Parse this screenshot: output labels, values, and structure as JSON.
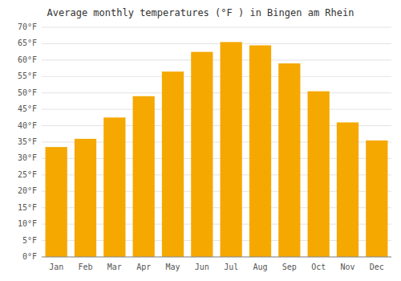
{
  "chart_data": {
    "type": "bar",
    "title": "Average monthly temperatures (°F ) in Bingen am Rhein",
    "categories": [
      "Jan",
      "Feb",
      "Mar",
      "Apr",
      "May",
      "Jun",
      "Jul",
      "Aug",
      "Sep",
      "Oct",
      "Nov",
      "Dec"
    ],
    "values": [
      33.5,
      36.0,
      42.5,
      49.0,
      56.5,
      62.5,
      65.5,
      64.5,
      59.0,
      50.5,
      41.0,
      35.5
    ],
    "color": "#F5A800",
    "ylim": [
      0,
      70
    ],
    "yticks": [
      {
        "value": 0,
        "label": "0°F"
      },
      {
        "value": 5,
        "label": "5°F"
      },
      {
        "value": 10,
        "label": "10°F"
      },
      {
        "value": 15,
        "label": "15°F"
      },
      {
        "value": 20,
        "label": "20°F"
      },
      {
        "value": 25,
        "label": "25°F"
      },
      {
        "value": 30,
        "label": "30°F"
      },
      {
        "value": 35,
        "label": "35°F"
      },
      {
        "value": 40,
        "label": "40°F"
      },
      {
        "value": 45,
        "label": "45°F"
      },
      {
        "value": 50,
        "label": "50°F"
      },
      {
        "value": 55,
        "label": "55°F"
      },
      {
        "value": 60,
        "label": "60°F"
      },
      {
        "value": 65,
        "label": "65°F"
      },
      {
        "value": 70,
        "label": "70°F"
      }
    ],
    "grid": true
  }
}
